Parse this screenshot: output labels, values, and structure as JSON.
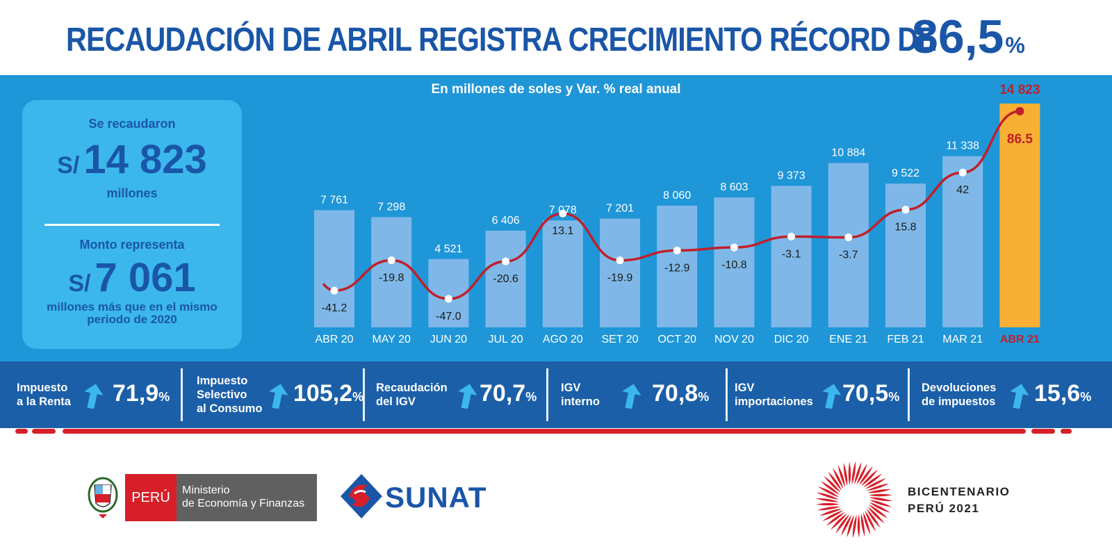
{
  "headline": {
    "text": "RECAUDACIÓN DE ABRIL REGISTRA CRECIMIENTO RÉCORD DE",
    "value": "86,5",
    "value_unit": "%"
  },
  "summary": {
    "label_top": "Se recaudaron",
    "currency": "S/",
    "amount": "14 823",
    "amount_unit": "millones",
    "label_mid": "Monto representa",
    "amount2": "7 061",
    "note_line1": "millones más que en el mismo",
    "note_line2": "periodo de 2020"
  },
  "chart_data": {
    "type": "bar",
    "subtitle": "En millones de soles y Var. % real anual",
    "categories": [
      "ABR 20",
      "MAY 20",
      "JUN 20",
      "JUL 20",
      "AGO 20",
      "SET 20",
      "OCT 20",
      "NOV 20",
      "DIC 20",
      "ENE 21",
      "FEB 21",
      "MAR 21",
      "ABR 21"
    ],
    "bar_labels": [
      "7 761",
      "7 298",
      "4 521",
      "6 406",
      "7 078",
      "7 201",
      "8 060",
      "8 603",
      "9 373",
      "10 884",
      "9 522",
      "11 338",
      "14 823"
    ],
    "series": [
      {
        "values": [
          7761,
          7298,
          4521,
          6406,
          7078,
          7201,
          8060,
          8603,
          9373,
          10884,
          9522,
          11338,
          14823
        ]
      },
      {
        "values": [
          -41.2,
          -19.8,
          -47.0,
          -20.6,
          13.1,
          -19.9,
          -12.9,
          -10.8,
          -3.1,
          -3.7,
          15.8,
          42,
          86.5
        ]
      }
    ],
    "line_labels": [
      "-41.2",
      "-19.8",
      "-47.0",
      "-20.6",
      "13.1",
      "-19.9",
      "-12.9",
      "-10.8",
      "-3.1",
      "-3.7",
      "15.8",
      "42",
      "86.5"
    ],
    "highlight_index": 12,
    "colors": {
      "bar": "#7fb8e8",
      "highlight_bar": "#f7b033",
      "line": "#c0202a",
      "highlight_text": "#c0202a"
    }
  },
  "indicators": [
    {
      "line1": "Impuesto",
      "line2": "a la Renta",
      "line3": "",
      "value": "71,9",
      "unit": "%"
    },
    {
      "line1": "Impuesto",
      "line2": "Selectivo",
      "line3": "al Consumo",
      "value": "105,2",
      "unit": "%"
    },
    {
      "line1": "Recaudación",
      "line2": "del IGV",
      "line3": "",
      "value": "70,7",
      "unit": "%"
    },
    {
      "line1": "IGV",
      "line2": "interno",
      "line3": "",
      "value": "70,8",
      "unit": "%"
    },
    {
      "line1": "IGV",
      "line2": "importaciones",
      "line3": "",
      "value": "70,5",
      "unit": "%"
    },
    {
      "line1": "Devoluciones",
      "line2": "de impuestos",
      "line3": "",
      "value": "15,6",
      "unit": "%"
    }
  ],
  "footer": {
    "mef_peru": "PERÚ",
    "mef_line1": "Ministerio",
    "mef_line2": "de Economía y Finanzas",
    "sunat": "SUNAT",
    "bicent_line1": "BICENTENARIO",
    "bicent_line2": "PERÚ 2021"
  }
}
